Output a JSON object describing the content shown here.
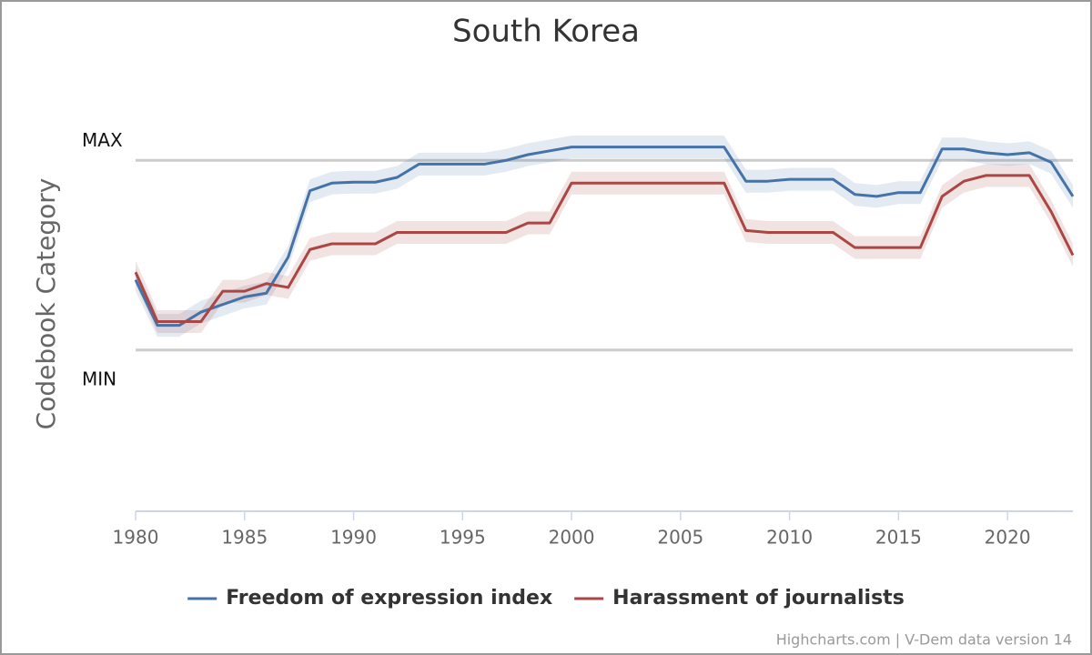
{
  "chart_data": {
    "type": "line",
    "title": "South Korea",
    "y_label": "Codebook Category",
    "credits": "Highcharts.com | V-Dem data version 14",
    "x": [
      1980,
      1981,
      1982,
      1983,
      1984,
      1985,
      1986,
      1987,
      1988,
      1989,
      1990,
      1991,
      1992,
      1993,
      1994,
      1995,
      1996,
      1997,
      1998,
      1999,
      2000,
      2001,
      2002,
      2003,
      2004,
      2005,
      2006,
      2007,
      2008,
      2009,
      2010,
      2011,
      2012,
      2013,
      2014,
      2015,
      2016,
      2017,
      2018,
      2019,
      2020,
      2021,
      2022,
      2023
    ],
    "xlim": [
      1980,
      2023
    ],
    "xticks": [
      1980,
      1985,
      1990,
      1995,
      2000,
      2005,
      2010,
      2015,
      2020
    ],
    "ylim": [
      -0.85,
      1.5
    ],
    "yticks": [
      {
        "value": 0,
        "label": "MIN"
      },
      {
        "value": 1,
        "label": "MAX"
      }
    ],
    "grid": true,
    "legend": "bottom",
    "series": [
      {
        "name": "Freedom of expression index",
        "color": "#4572a7",
        "values": [
          0.37,
          0.13,
          0.13,
          0.2,
          0.24,
          0.28,
          0.3,
          0.49,
          0.84,
          0.88,
          0.885,
          0.885,
          0.91,
          0.98,
          0.98,
          0.98,
          0.98,
          1.0,
          1.03,
          1.05,
          1.07,
          1.07,
          1.07,
          1.07,
          1.07,
          1.07,
          1.07,
          1.07,
          0.89,
          0.89,
          0.9,
          0.9,
          0.9,
          0.82,
          0.81,
          0.83,
          0.83,
          1.06,
          1.06,
          1.04,
          1.03,
          1.04,
          0.99,
          0.81
        ],
        "lower": [
          0.31,
          0.07,
          0.07,
          0.14,
          0.18,
          0.22,
          0.24,
          0.43,
          0.78,
          0.82,
          0.825,
          0.825,
          0.85,
          0.92,
          0.92,
          0.92,
          0.92,
          0.94,
          0.97,
          0.99,
          1.01,
          1.01,
          1.01,
          1.01,
          1.01,
          1.01,
          1.01,
          1.01,
          0.83,
          0.83,
          0.84,
          0.84,
          0.84,
          0.76,
          0.75,
          0.77,
          0.77,
          1.0,
          1.0,
          0.98,
          0.97,
          0.98,
          0.93,
          0.75
        ],
        "upper": [
          0.43,
          0.19,
          0.19,
          0.26,
          0.3,
          0.34,
          0.36,
          0.55,
          0.9,
          0.94,
          0.945,
          0.945,
          0.97,
          1.04,
          1.04,
          1.04,
          1.04,
          1.06,
          1.09,
          1.11,
          1.13,
          1.13,
          1.13,
          1.13,
          1.13,
          1.13,
          1.13,
          1.13,
          0.95,
          0.95,
          0.96,
          0.96,
          0.96,
          0.88,
          0.87,
          0.89,
          0.89,
          1.12,
          1.12,
          1.1,
          1.09,
          1.1,
          1.05,
          0.87
        ]
      },
      {
        "name": "Harassment of journalists",
        "color": "#aa4643",
        "values": [
          0.41,
          0.15,
          0.15,
          0.15,
          0.31,
          0.31,
          0.35,
          0.33,
          0.53,
          0.56,
          0.56,
          0.56,
          0.62,
          0.62,
          0.62,
          0.62,
          0.62,
          0.62,
          0.67,
          0.67,
          0.88,
          0.88,
          0.88,
          0.88,
          0.88,
          0.88,
          0.88,
          0.88,
          0.63,
          0.62,
          0.62,
          0.62,
          0.62,
          0.54,
          0.54,
          0.54,
          0.54,
          0.81,
          0.89,
          0.92,
          0.92,
          0.92,
          0.73,
          0.5
        ],
        "lower": [
          0.35,
          0.09,
          0.09,
          0.09,
          0.25,
          0.25,
          0.29,
          0.27,
          0.47,
          0.5,
          0.5,
          0.5,
          0.56,
          0.56,
          0.56,
          0.56,
          0.56,
          0.56,
          0.61,
          0.61,
          0.82,
          0.82,
          0.82,
          0.82,
          0.82,
          0.82,
          0.82,
          0.82,
          0.57,
          0.56,
          0.56,
          0.56,
          0.56,
          0.48,
          0.48,
          0.48,
          0.48,
          0.75,
          0.83,
          0.86,
          0.86,
          0.86,
          0.67,
          0.44
        ],
        "upper": [
          0.47,
          0.21,
          0.21,
          0.21,
          0.37,
          0.37,
          0.41,
          0.39,
          0.59,
          0.62,
          0.62,
          0.62,
          0.68,
          0.68,
          0.68,
          0.68,
          0.68,
          0.68,
          0.73,
          0.73,
          0.94,
          0.94,
          0.94,
          0.94,
          0.94,
          0.94,
          0.94,
          0.94,
          0.69,
          0.68,
          0.68,
          0.68,
          0.68,
          0.6,
          0.6,
          0.6,
          0.6,
          0.87,
          0.95,
          0.98,
          0.98,
          0.98,
          0.79,
          0.56
        ]
      }
    ]
  }
}
